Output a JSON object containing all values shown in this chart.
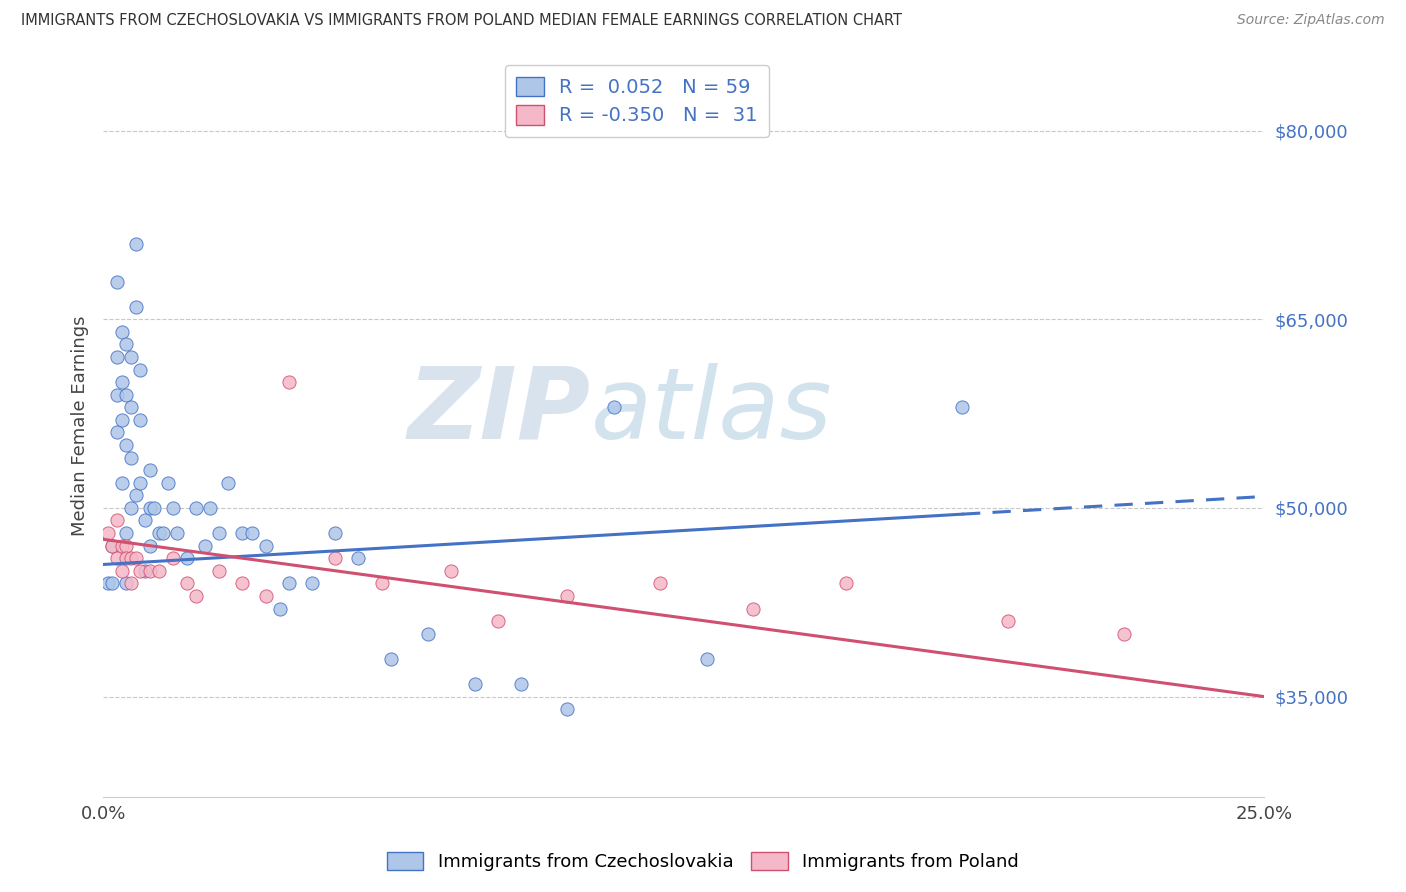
{
  "title": "IMMIGRANTS FROM CZECHOSLOVAKIA VS IMMIGRANTS FROM POLAND MEDIAN FEMALE EARNINGS CORRELATION CHART",
  "source": "Source: ZipAtlas.com",
  "ylabel": "Median Female Earnings",
  "xlim": [
    0.0,
    0.25
  ],
  "ylim": [
    27000,
    86000
  ],
  "xtick_positions": [
    0.0,
    0.25
  ],
  "xtick_labels": [
    "0.0%",
    "25.0%"
  ],
  "ytick_labels": [
    "$35,000",
    "$50,000",
    "$65,000",
    "$80,000"
  ],
  "ytick_values": [
    35000,
    50000,
    65000,
    80000
  ],
  "legend_labels": [
    "Immigrants from Czechoslovakia",
    "Immigrants from Poland"
  ],
  "R_czech": "0.052",
  "N_czech": "59",
  "R_poland": "-0.350",
  "N_poland": "31",
  "color_czech": "#aec6e8",
  "color_poland": "#f5b8c8",
  "line_color_czech": "#4472c4",
  "line_color_poland": "#d05070",
  "background_color": "#ffffff",
  "grid_color": "#c8c8c8",
  "czech_trend_x0": 0.0,
  "czech_trend_y0": 45500,
  "czech_trend_x1": 0.185,
  "czech_trend_y1": 49500,
  "czech_trend_x2": 0.25,
  "czech_trend_y2": 50500,
  "poland_trend_x0": 0.0,
  "poland_trend_y0": 47500,
  "poland_trend_x1": 0.25,
  "poland_trend_y1": 35000,
  "czech_x": [
    0.001,
    0.002,
    0.002,
    0.003,
    0.003,
    0.003,
    0.003,
    0.004,
    0.004,
    0.004,
    0.004,
    0.005,
    0.005,
    0.005,
    0.005,
    0.005,
    0.006,
    0.006,
    0.006,
    0.006,
    0.007,
    0.007,
    0.007,
    0.008,
    0.008,
    0.008,
    0.009,
    0.009,
    0.01,
    0.01,
    0.01,
    0.011,
    0.012,
    0.013,
    0.014,
    0.015,
    0.016,
    0.018,
    0.02,
    0.022,
    0.023,
    0.025,
    0.027,
    0.03,
    0.032,
    0.035,
    0.038,
    0.04,
    0.045,
    0.05,
    0.055,
    0.062,
    0.07,
    0.08,
    0.09,
    0.1,
    0.11,
    0.13,
    0.185
  ],
  "czech_y": [
    44000,
    47000,
    44000,
    68000,
    62000,
    59000,
    56000,
    64000,
    60000,
    57000,
    52000,
    63000,
    59000,
    55000,
    48000,
    44000,
    62000,
    58000,
    54000,
    50000,
    71000,
    66000,
    51000,
    61000,
    57000,
    52000,
    49000,
    45000,
    53000,
    50000,
    47000,
    50000,
    48000,
    48000,
    52000,
    50000,
    48000,
    46000,
    50000,
    47000,
    50000,
    48000,
    52000,
    48000,
    48000,
    47000,
    42000,
    44000,
    44000,
    48000,
    46000,
    38000,
    40000,
    36000,
    36000,
    34000,
    58000,
    38000,
    58000
  ],
  "poland_x": [
    0.001,
    0.002,
    0.003,
    0.003,
    0.004,
    0.004,
    0.005,
    0.005,
    0.006,
    0.006,
    0.007,
    0.008,
    0.01,
    0.012,
    0.015,
    0.018,
    0.02,
    0.025,
    0.03,
    0.035,
    0.04,
    0.05,
    0.06,
    0.075,
    0.085,
    0.1,
    0.12,
    0.14,
    0.16,
    0.195,
    0.22
  ],
  "poland_y": [
    48000,
    47000,
    49000,
    46000,
    47000,
    45000,
    47000,
    46000,
    46000,
    44000,
    46000,
    45000,
    45000,
    45000,
    46000,
    44000,
    43000,
    45000,
    44000,
    43000,
    60000,
    46000,
    44000,
    45000,
    41000,
    43000,
    44000,
    42000,
    44000,
    41000,
    40000
  ]
}
